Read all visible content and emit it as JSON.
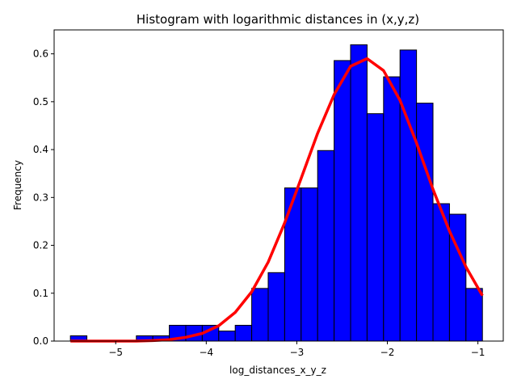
{
  "chart_data": {
    "type": "bar",
    "title": "Histogram with logarithmic distances in (x,y,z)",
    "xlabel": "log_distances_x_y_z",
    "ylabel": "Frequency",
    "xlim": [
      -5.68,
      -0.72
    ],
    "ylim": [
      0,
      0.65
    ],
    "grid": false,
    "xticks": [
      -5,
      -4,
      -3,
      -2,
      -1
    ],
    "xtick_labels": [
      "−5",
      "−4",
      "−3",
      "−2",
      "−1"
    ],
    "yticks": [
      0.0,
      0.1,
      0.2,
      0.3,
      0.4,
      0.5,
      0.6
    ],
    "ytick_labels": [
      "0.0",
      "0.1",
      "0.2",
      "0.3",
      "0.4",
      "0.5",
      "0.6"
    ],
    "bins": {
      "edges": [
        -5.5,
        -5.318,
        -5.136,
        -4.954,
        -4.772,
        -4.59,
        -4.408,
        -4.226,
        -4.044,
        -3.862,
        -3.68,
        -3.498,
        -3.316,
        -3.134,
        -2.952,
        -2.77,
        -2.588,
        -2.406,
        -2.224,
        -2.042,
        -1.86,
        -1.678,
        -1.496,
        -1.314,
        -1.132,
        -0.95
      ],
      "values": [
        0.011,
        0.0,
        0.0,
        0.0,
        0.011,
        0.011,
        0.033,
        0.033,
        0.033,
        0.021,
        0.033,
        0.11,
        0.143,
        0.32,
        0.32,
        0.398,
        0.586,
        0.619,
        0.475,
        0.552,
        0.608,
        0.497,
        0.287,
        0.265,
        0.11
      ]
    },
    "series": [
      {
        "type": "line",
        "x": [
          -5.5,
          -5.318,
          -5.136,
          -4.954,
          -4.772,
          -4.59,
          -4.408,
          -4.226,
          -4.044,
          -3.862,
          -3.68,
          -3.498,
          -3.316,
          -3.134,
          -2.952,
          -2.77,
          -2.588,
          -2.406,
          -2.224,
          -2.042,
          -1.86,
          -1.678,
          -1.496,
          -1.314,
          -1.132,
          -0.95
        ],
        "y": [
          0.0,
          0.0,
          0.0,
          0.0,
          0.0,
          0.001,
          0.003,
          0.008,
          0.016,
          0.032,
          0.06,
          0.103,
          0.165,
          0.247,
          0.34,
          0.434,
          0.515,
          0.574,
          0.59,
          0.565,
          0.503,
          0.414,
          0.317,
          0.23,
          0.155,
          0.095
        ]
      }
    ],
    "colors": {
      "bar_fill": "#0000ff",
      "bar_edge": "#000000",
      "line": "#ff0000"
    }
  }
}
